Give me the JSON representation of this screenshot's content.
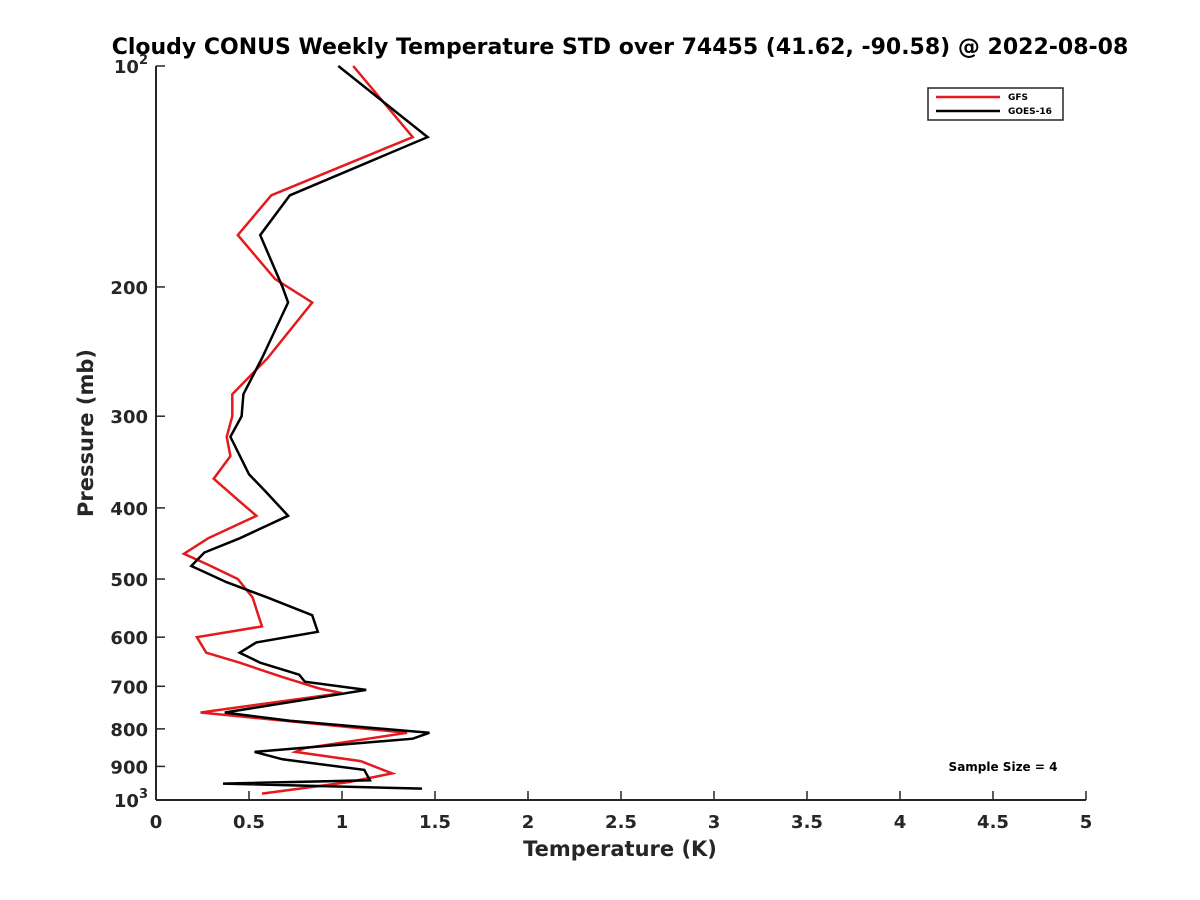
{
  "chart_data": {
    "type": "line",
    "title": "Cloudy CONUS Weekly Temperature STD over 74455 (41.62, -90.58) @ 2022-08-08",
    "xlabel": "Temperature (K)",
    "ylabel": "Pressure (mb)",
    "xlim": [
      0,
      5
    ],
    "ylim": [
      100,
      1000
    ],
    "y_scale": "log",
    "y_reversed": true,
    "x_ticks": [
      0,
      0.5,
      1,
      1.5,
      2,
      2.5,
      3,
      3.5,
      4,
      4.5,
      5
    ],
    "x_tick_labels": [
      "0",
      "0.5",
      "1",
      "1.5",
      "2",
      "2.5",
      "3",
      "3.5",
      "4",
      "4.5",
      "5"
    ],
    "y_ticks": [
      {
        "value": 100,
        "base": "10",
        "exp": "2"
      },
      {
        "value": 200,
        "label": "200"
      },
      {
        "value": 300,
        "label": "300"
      },
      {
        "value": 400,
        "label": "400"
      },
      {
        "value": 500,
        "label": "500"
      },
      {
        "value": 600,
        "label": "600"
      },
      {
        "value": 700,
        "label": "700"
      },
      {
        "value": 800,
        "label": "800"
      },
      {
        "value": 900,
        "label": "900"
      },
      {
        "value": 1000,
        "base": "10",
        "exp": "3"
      }
    ],
    "grid": false,
    "legend_position": "top-right",
    "annotation": "Sample Size = 4",
    "series": [
      {
        "name": "GFS",
        "color": "#e41a1c",
        "points": [
          [
            1.06,
            100
          ],
          [
            1.38,
            125
          ],
          [
            0.62,
            150
          ],
          [
            0.44,
            170
          ],
          [
            0.64,
            195
          ],
          [
            0.84,
            210
          ],
          [
            0.6,
            250
          ],
          [
            0.41,
            280
          ],
          [
            0.41,
            300
          ],
          [
            0.38,
            320
          ],
          [
            0.4,
            340
          ],
          [
            0.31,
            365
          ],
          [
            0.44,
            390
          ],
          [
            0.54,
            410
          ],
          [
            0.28,
            440
          ],
          [
            0.15,
            462
          ],
          [
            0.28,
            478
          ],
          [
            0.44,
            500
          ],
          [
            0.52,
            530
          ],
          [
            0.55,
            560
          ],
          [
            0.57,
            580
          ],
          [
            0.22,
            600
          ],
          [
            0.27,
            630
          ],
          [
            0.45,
            650
          ],
          [
            0.68,
            680
          ],
          [
            0.88,
            705
          ],
          [
            1.0,
            715
          ],
          [
            0.24,
            760
          ],
          [
            1.35,
            810
          ],
          [
            0.8,
            850
          ],
          [
            0.75,
            860
          ],
          [
            1.1,
            885
          ],
          [
            1.27,
            920
          ],
          [
            1.04,
            945
          ],
          [
            0.57,
            980
          ]
        ]
      },
      {
        "name": "GOES-16",
        "color": "#000000",
        "points": [
          [
            0.98,
            100
          ],
          [
            1.46,
            125
          ],
          [
            0.72,
            150
          ],
          [
            0.56,
            170
          ],
          [
            0.68,
            200
          ],
          [
            0.71,
            210
          ],
          [
            0.57,
            250
          ],
          [
            0.47,
            280
          ],
          [
            0.46,
            300
          ],
          [
            0.4,
            320
          ],
          [
            0.5,
            360
          ],
          [
            0.59,
            380
          ],
          [
            0.71,
            410
          ],
          [
            0.45,
            440
          ],
          [
            0.26,
            460
          ],
          [
            0.19,
            480
          ],
          [
            0.38,
            505
          ],
          [
            0.6,
            530
          ],
          [
            0.84,
            560
          ],
          [
            0.87,
            590
          ],
          [
            0.54,
            610
          ],
          [
            0.45,
            630
          ],
          [
            0.56,
            650
          ],
          [
            0.77,
            675
          ],
          [
            0.8,
            690
          ],
          [
            1.13,
            708
          ],
          [
            0.95,
            720
          ],
          [
            0.37,
            760
          ],
          [
            0.72,
            780
          ],
          [
            1.47,
            810
          ],
          [
            1.38,
            825
          ],
          [
            0.53,
            860
          ],
          [
            0.68,
            880
          ],
          [
            1.12,
            910
          ],
          [
            1.15,
            940
          ],
          [
            0.36,
            950
          ],
          [
            1.43,
            965
          ]
        ]
      }
    ]
  }
}
